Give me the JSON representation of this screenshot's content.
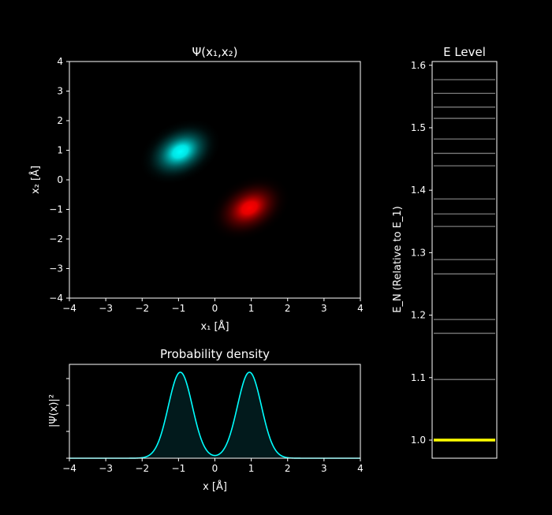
{
  "chart_data": [
    {
      "type": "heatmap",
      "title": "Ψ(x₁,x₂)",
      "xlabel": "x₁ [Å]",
      "ylabel": "x₂ [Å]",
      "xlim": [
        -4,
        4
      ],
      "ylim": [
        -4,
        4
      ],
      "xticks": [
        "−4",
        "−3",
        "−2",
        "−1",
        "0",
        "1",
        "2",
        "3",
        "4"
      ],
      "yticks": [
        "4",
        "3",
        "2",
        "1",
        "0",
        "−1",
        "−2",
        "−3",
        "−4"
      ],
      "blobs": [
        {
          "color": "#00e6e6",
          "center_x": -0.95,
          "center_y": 0.95
        },
        {
          "color": "#e60000",
          "center_x": 0.95,
          "center_y": -0.95
        }
      ]
    },
    {
      "type": "area",
      "title": "Probability density",
      "xlabel": "x [Å]",
      "ylabel": "|Ψ(x)|²",
      "xlim": [
        -4,
        4
      ],
      "xticks": [
        "−4",
        "−3",
        "−2",
        "−1",
        "0",
        "1",
        "2",
        "3",
        "4"
      ],
      "peaks_x": [
        -0.95,
        0.95
      ],
      "peak_width": 0.33,
      "line_color": "#00ffff",
      "fill_color": "#021a1c"
    },
    {
      "type": "line",
      "title": "E Level",
      "ylabel": "E_N (Relative to E_1)",
      "ylim": [
        0.971,
        1.606
      ],
      "yticks": [
        "1.0",
        "1.1",
        "1.2",
        "1.3",
        "1.4",
        "1.5",
        "1.6"
      ],
      "ground_level": 1.0,
      "ground_color": "#ffff00",
      "excited_levels": [
        1.097,
        1.171,
        1.193,
        1.266,
        1.289,
        1.342,
        1.362,
        1.386,
        1.439,
        1.459,
        1.482,
        1.515,
        1.533,
        1.555,
        1.577
      ],
      "excited_color": "#7a7a7a"
    }
  ]
}
